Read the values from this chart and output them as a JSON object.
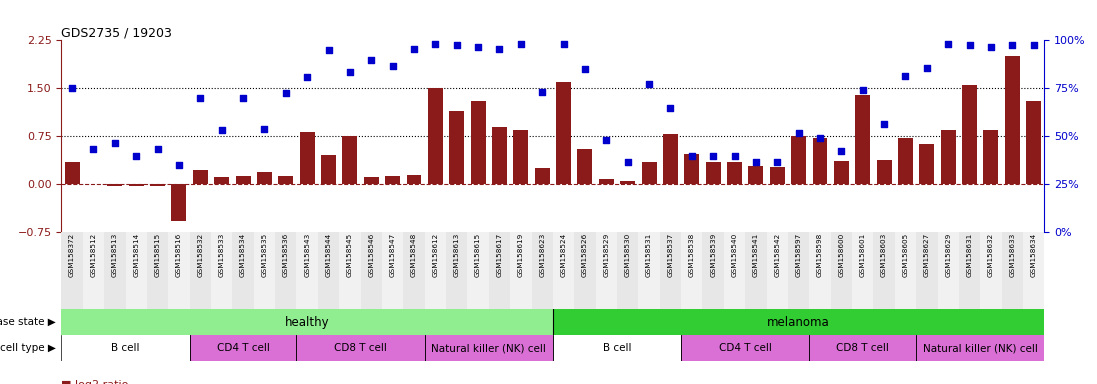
{
  "title": "GDS2735 / 19203",
  "samples": [
    "GSM158372",
    "GSM158512",
    "GSM158513",
    "GSM158514",
    "GSM158515",
    "GSM158516",
    "GSM158532",
    "GSM158533",
    "GSM158534",
    "GSM158535",
    "GSM158536",
    "GSM158543",
    "GSM158544",
    "GSM158545",
    "GSM158546",
    "GSM158547",
    "GSM158548",
    "GSM158612",
    "GSM158613",
    "GSM158615",
    "GSM158617",
    "GSM158619",
    "GSM158623",
    "GSM158524",
    "GSM158526",
    "GSM158529",
    "GSM158530",
    "GSM158531",
    "GSM158537",
    "GSM158538",
    "GSM158539",
    "GSM158540",
    "GSM158541",
    "GSM158542",
    "GSM158597",
    "GSM158598",
    "GSM158600",
    "GSM158601",
    "GSM158603",
    "GSM158605",
    "GSM158627",
    "GSM158629",
    "GSM158631",
    "GSM158632",
    "GSM158633",
    "GSM158634"
  ],
  "log2_ratio": [
    0.35,
    0.0,
    -0.02,
    -0.02,
    -0.02,
    -0.58,
    0.22,
    0.12,
    0.13,
    0.2,
    0.13,
    0.82,
    0.46,
    0.75,
    0.12,
    0.13,
    0.15,
    1.5,
    1.15,
    1.3,
    0.9,
    0.85,
    0.25,
    1.6,
    0.55,
    0.08,
    0.05,
    0.35,
    0.78,
    0.48,
    0.35,
    0.35,
    0.28,
    0.27,
    0.75,
    0.72,
    0.37,
    1.4,
    0.38,
    0.72,
    0.63,
    0.85,
    1.55,
    0.85,
    2.0,
    1.3
  ],
  "percentile": [
    1.5,
    0.55,
    0.65,
    0.45,
    0.55,
    0.3,
    1.35,
    0.85,
    1.35,
    0.87,
    1.42,
    1.67,
    2.1,
    1.75,
    1.95,
    1.85,
    2.12,
    2.2,
    2.18,
    2.15,
    2.12,
    2.2,
    1.45,
    2.2,
    1.8,
    0.7,
    0.35,
    1.57,
    1.2,
    0.45,
    0.45,
    0.45,
    0.35,
    0.35,
    0.8,
    0.72,
    0.52,
    1.48,
    0.95,
    1.7,
    1.82,
    2.2,
    2.18,
    2.15,
    2.18,
    2.18
  ],
  "disease_state": [
    "healthy",
    "healthy",
    "healthy",
    "healthy",
    "healthy",
    "healthy",
    "healthy",
    "healthy",
    "healthy",
    "healthy",
    "healthy",
    "healthy",
    "healthy",
    "healthy",
    "healthy",
    "healthy",
    "healthy",
    "healthy",
    "healthy",
    "healthy",
    "healthy",
    "healthy",
    "healthy",
    "melanoma",
    "melanoma",
    "melanoma",
    "melanoma",
    "melanoma",
    "melanoma",
    "melanoma",
    "melanoma",
    "melanoma",
    "melanoma",
    "melanoma",
    "melanoma",
    "melanoma",
    "melanoma",
    "melanoma",
    "melanoma",
    "melanoma",
    "melanoma",
    "melanoma",
    "melanoma",
    "melanoma",
    "melanoma",
    "melanoma"
  ],
  "cell_type": [
    "B cell",
    "B cell",
    "B cell",
    "B cell",
    "B cell",
    "B cell",
    "CD4 T cell",
    "CD4 T cell",
    "CD4 T cell",
    "CD4 T cell",
    "CD4 T cell",
    "CD8 T cell",
    "CD8 T cell",
    "CD8 T cell",
    "CD8 T cell",
    "CD8 T cell",
    "CD8 T cell",
    "Natural killer (NK) cell",
    "Natural killer (NK) cell",
    "Natural killer (NK) cell",
    "Natural killer (NK) cell",
    "Natural killer (NK) cell",
    "Natural killer (NK) cell",
    "B cell",
    "B cell",
    "B cell",
    "B cell",
    "B cell",
    "B cell",
    "CD4 T cell",
    "CD4 T cell",
    "CD4 T cell",
    "CD4 T cell",
    "CD4 T cell",
    "CD4 T cell",
    "CD8 T cell",
    "CD8 T cell",
    "CD8 T cell",
    "CD8 T cell",
    "CD8 T cell",
    "Natural killer (NK) cell",
    "Natural killer (NK) cell",
    "Natural killer (NK) cell",
    "Natural killer (NK) cell",
    "Natural killer (NK) cell",
    "Natural killer (NK) cell"
  ],
  "bar_color": "#8B1A1A",
  "scatter_color": "#0000CD",
  "ylim_left": [
    -0.75,
    2.25
  ],
  "ylim_right": [
    0,
    100
  ],
  "yticks_left": [
    -0.75,
    0,
    0.75,
    1.5,
    2.25
  ],
  "yticks_right": [
    0,
    25,
    50,
    75,
    100
  ],
  "hline_values": [
    0.75,
    1.5
  ],
  "healthy_color": "#90EE90",
  "melanoma_color": "#32CD32",
  "cell_colors": {
    "B cell": "#FFFFFF",
    "CD4 T cell": "#DA70D6",
    "CD8 T cell": "#DA70D6",
    "Natural killer (NK) cell": "#DA70D6"
  }
}
